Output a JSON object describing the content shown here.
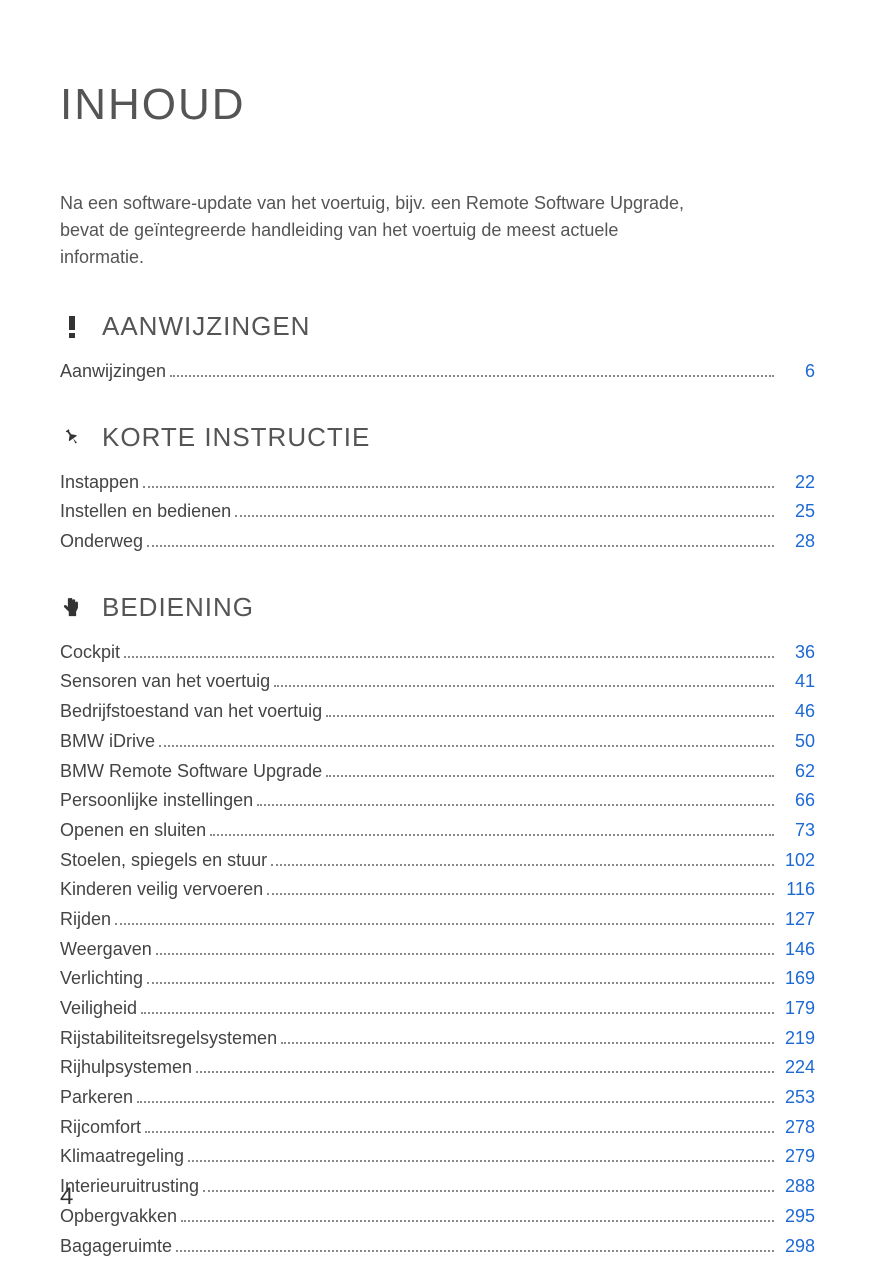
{
  "title": "INHOUD",
  "intro": "Na een software-update van het voertuig, bijv. een Remote Software Upgrade, bevat de geïntegreerde handleiding van het voertuig de meest actuele informatie.",
  "page_number": "4",
  "link_color": "#1c69d4",
  "text_color": "#555555",
  "sections": [
    {
      "icon": "exclaim",
      "title": "AANWIJZINGEN",
      "entries": [
        {
          "label": "Aanwijzingen",
          "page": "6"
        }
      ]
    },
    {
      "icon": "pin",
      "title": "KORTE INSTRUCTIE",
      "entries": [
        {
          "label": "Instappen",
          "page": "22"
        },
        {
          "label": "Instellen en bedienen",
          "page": "25"
        },
        {
          "label": "Onderweg",
          "page": "28"
        }
      ]
    },
    {
      "icon": "hand",
      "title": "BEDIENING",
      "entries": [
        {
          "label": "Cockpit",
          "page": "36"
        },
        {
          "label": "Sensoren van het voertuig",
          "page": "41"
        },
        {
          "label": "Bedrijfstoestand van het voertuig",
          "page": "46"
        },
        {
          "label": "BMW iDrive",
          "page": "50"
        },
        {
          "label": "BMW Remote Software Upgrade",
          "page": "62"
        },
        {
          "label": "Persoonlijke instellingen",
          "page": "66"
        },
        {
          "label": "Openen en sluiten",
          "page": "73"
        },
        {
          "label": "Stoelen, spiegels en stuur",
          "page": "102"
        },
        {
          "label": "Kinderen veilig vervoeren",
          "page": "116"
        },
        {
          "label": "Rijden",
          "page": "127"
        },
        {
          "label": "Weergaven",
          "page": "146"
        },
        {
          "label": "Verlichting",
          "page": "169"
        },
        {
          "label": "Veiligheid",
          "page": "179"
        },
        {
          "label": "Rijstabiliteitsregelsystemen",
          "page": "219"
        },
        {
          "label": "Rijhulpsystemen",
          "page": "224"
        },
        {
          "label": "Parkeren",
          "page": "253"
        },
        {
          "label": "Rijcomfort",
          "page": "278"
        },
        {
          "label": "Klimaatregeling",
          "page": "279"
        },
        {
          "label": "Interieuruitrusting",
          "page": "288"
        },
        {
          "label": "Opbergvakken",
          "page": "295"
        },
        {
          "label": "Bagageruimte",
          "page": "298"
        }
      ]
    }
  ]
}
